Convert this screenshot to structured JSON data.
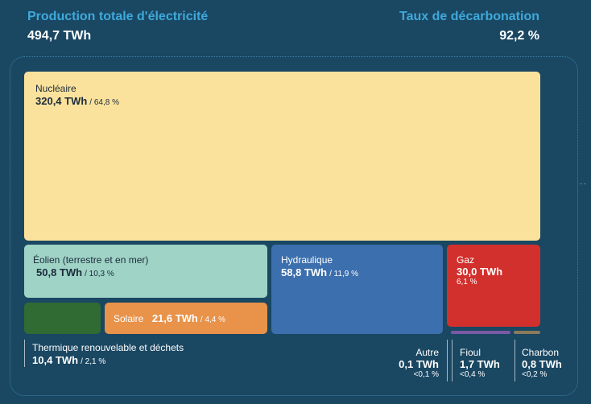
{
  "header": {
    "production_label": "Production totale d'électricité",
    "production_value": "494,7 TWh",
    "decarbonation_label": "Taux de décarbonation",
    "decarbonation_value": "92,2 %"
  },
  "tiles": {
    "nucleaire": {
      "name": "Nucléaire",
      "value": "320,4 TWh",
      "pct": "/ 64,8 %",
      "color": "#fbe29c"
    },
    "eolien": {
      "name": "Éolien (terrestre et en mer)",
      "value": "50,8 TWh",
      "pct": "/ 10,3 %",
      "color": "#9fd3c6"
    },
    "hydraulique": {
      "name": "Hydraulique",
      "value": "58,8 TWh",
      "pct": "/ 11,9 %",
      "color": "#3c6fad"
    },
    "gaz": {
      "name": "Gaz",
      "value": "30,0 TWh",
      "pct": "6,1 %",
      "color": "#d2302c"
    },
    "solaire": {
      "name": "Solaire",
      "value": "21,6 TWh",
      "pct": "/ 4,4 %",
      "color": "#e8924a"
    },
    "thermique": {
      "name": "Thermique renouvelable et déchets",
      "value": "10,4 TWh",
      "pct": "/ 2,1 %",
      "color": "#2f6b33"
    },
    "autre": {
      "name": "Autre",
      "value": "0,1 TWh",
      "pct": "<0,1 %"
    },
    "fioul": {
      "name": "Fioul",
      "value": "1,7 TWh",
      "pct": "<0,4 %",
      "color": "#7a5aa6"
    },
    "charbon": {
      "name": "Charbon",
      "value": "0,8 TWh",
      "pct": "<0,2 %",
      "color": "#8a7b5a"
    }
  },
  "chart_data": {
    "type": "treemap",
    "total_label": "Production totale d'électricité",
    "total_value": 494.7,
    "unit": "TWh",
    "decarbonation_rate_pct": 92.2,
    "items": [
      {
        "name": "Nucléaire",
        "value": 320.4,
        "share_pct": 64.8
      },
      {
        "name": "Hydraulique",
        "value": 58.8,
        "share_pct": 11.9
      },
      {
        "name": "Éolien (terrestre et en mer)",
        "value": 50.8,
        "share_pct": 10.3
      },
      {
        "name": "Gaz",
        "value": 30.0,
        "share_pct": 6.1
      },
      {
        "name": "Solaire",
        "value": 21.6,
        "share_pct": 4.4
      },
      {
        "name": "Thermique renouvelable et déchets",
        "value": 10.4,
        "share_pct": 2.1
      },
      {
        "name": "Fioul",
        "value": 1.7,
        "share_label": "<0,4 %"
      },
      {
        "name": "Charbon",
        "value": 0.8,
        "share_label": "<0,2 %"
      },
      {
        "name": "Autre",
        "value": 0.1,
        "share_label": "<0,1 %"
      }
    ]
  }
}
